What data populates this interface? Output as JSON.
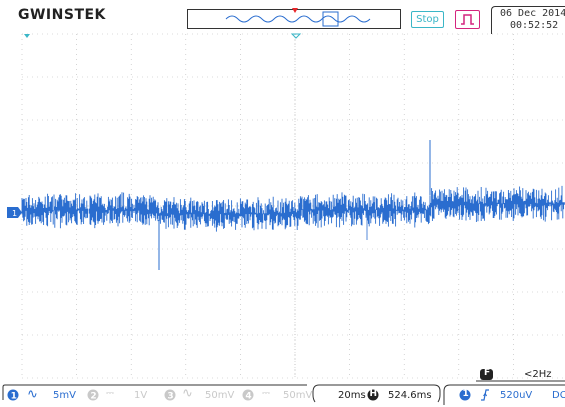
{
  "header": {
    "logo": "GWINSTEK",
    "run_state": "Stop",
    "date": "06 Dec 2014",
    "time": "00:52:52"
  },
  "filter": {
    "badge": "F",
    "value": "<2Hz"
  },
  "channels": [
    {
      "number": "1",
      "coupling": "AC",
      "scale": "5mV",
      "active": true,
      "color": "#2a6dcf"
    },
    {
      "number": "2",
      "coupling": "DC",
      "scale": "1V",
      "active": false
    },
    {
      "number": "3",
      "coupling": "AC",
      "scale": "50mV",
      "active": false
    },
    {
      "number": "4",
      "coupling": "DC",
      "scale": "50mV",
      "active": false
    }
  ],
  "timebase": {
    "scale": "20ms",
    "h_badge": "H",
    "position": "524.6ms"
  },
  "trigger": {
    "source": "1",
    "slope": "rising",
    "level": "520uV",
    "coupling_label": "DC"
  },
  "colors": {
    "trace": "#2a6dcf",
    "grid": "#b8b8b8",
    "accent_cyan": "#3ab6c7",
    "accent_magenta": "#d4247e",
    "trigger_marker": "#e8262a"
  }
}
